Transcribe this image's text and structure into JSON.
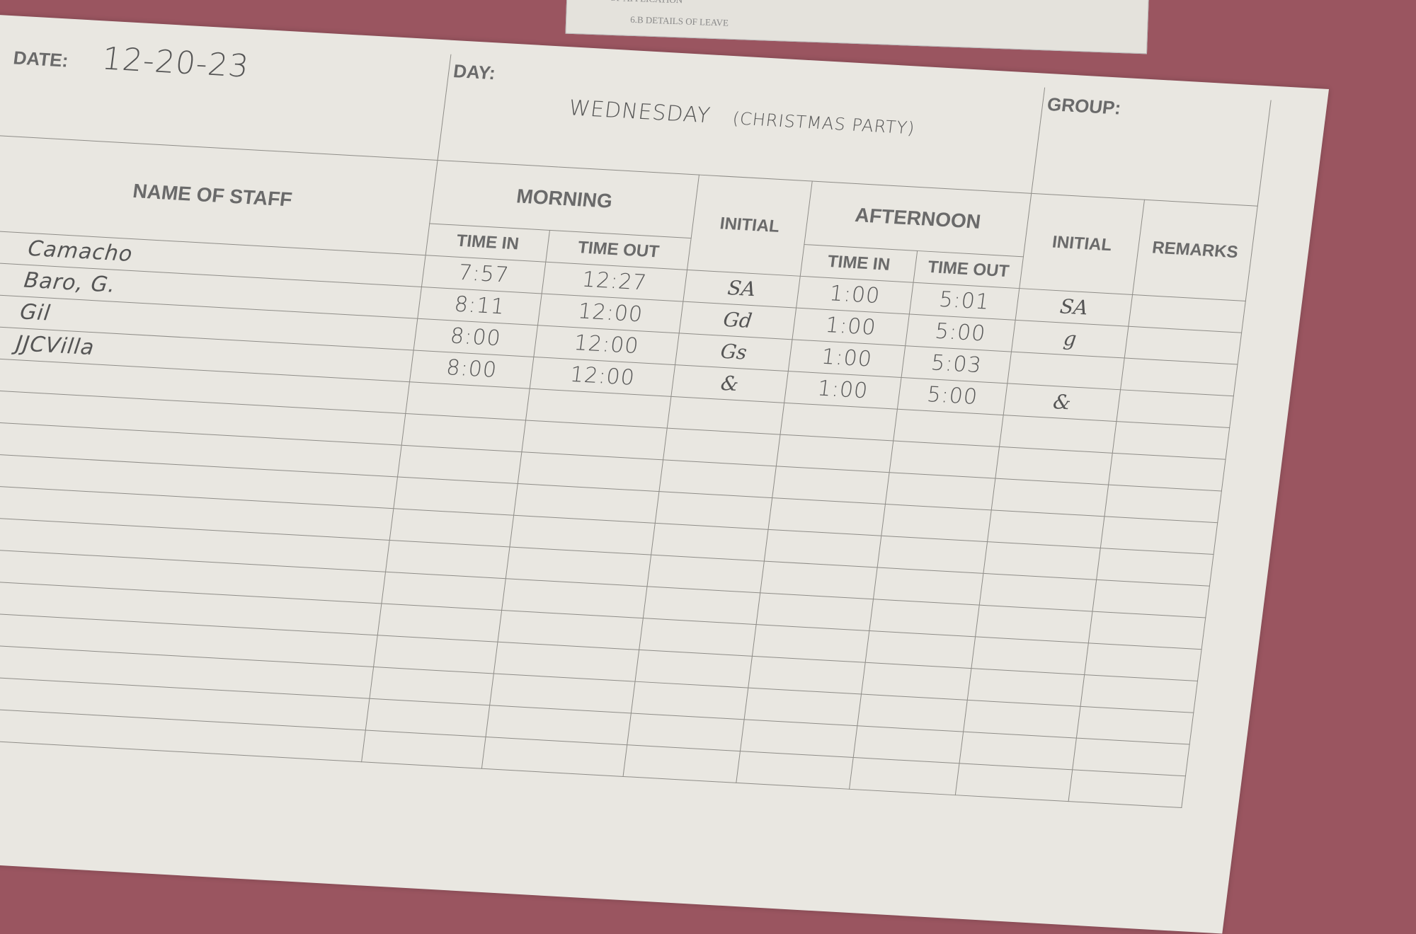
{
  "underlying_form": {
    "line1": "OF APPLICATION",
    "line2": "6.B DETAILS OF LEAVE"
  },
  "header": {
    "date_label": "DATE:",
    "date_value": "12-20-23",
    "day_label": "DAY:",
    "day_value": "WEDNESDAY",
    "day_note": "(CHRISTMAS PARTY)",
    "group_label": "GROUP:"
  },
  "columns": {
    "name": "NAME OF STAFF",
    "morning": "MORNING",
    "initial_morning": "INITIAL",
    "afternoon": "AFTERNOON",
    "initial_afternoon": "INITIAL",
    "remarks": "REMARKS",
    "time_in": "TIME IN",
    "time_out": "TIME OUT"
  },
  "rows": [
    {
      "name": "Camacho",
      "am_in": "7:57",
      "am_out": "12:27",
      "am_initial": "SA",
      "pm_in": "1:00",
      "pm_out": "5:01",
      "pm_initial": "SA",
      "remarks": ""
    },
    {
      "name": "Baro, G.",
      "am_in": "8:11",
      "am_out": "12:00",
      "am_initial": "Gd",
      "pm_in": "1:00",
      "pm_out": "5:00",
      "pm_initial": "g",
      "remarks": ""
    },
    {
      "name": "Gil",
      "am_in": "8:00",
      "am_out": "12:00",
      "am_initial": "Gs",
      "pm_in": "1:00",
      "pm_out": "5:03",
      "pm_initial": "",
      "remarks": ""
    },
    {
      "name": "JJCVilla",
      "am_in": "8:00",
      "am_out": "12:00",
      "am_initial": "&",
      "pm_in": "1:00",
      "pm_out": "5:00",
      "pm_initial": "&",
      "remarks": ""
    }
  ],
  "empty_rows": 12,
  "colors": {
    "paper": "#e9e7e1",
    "background": "#9a5560",
    "ink": "#555555"
  }
}
